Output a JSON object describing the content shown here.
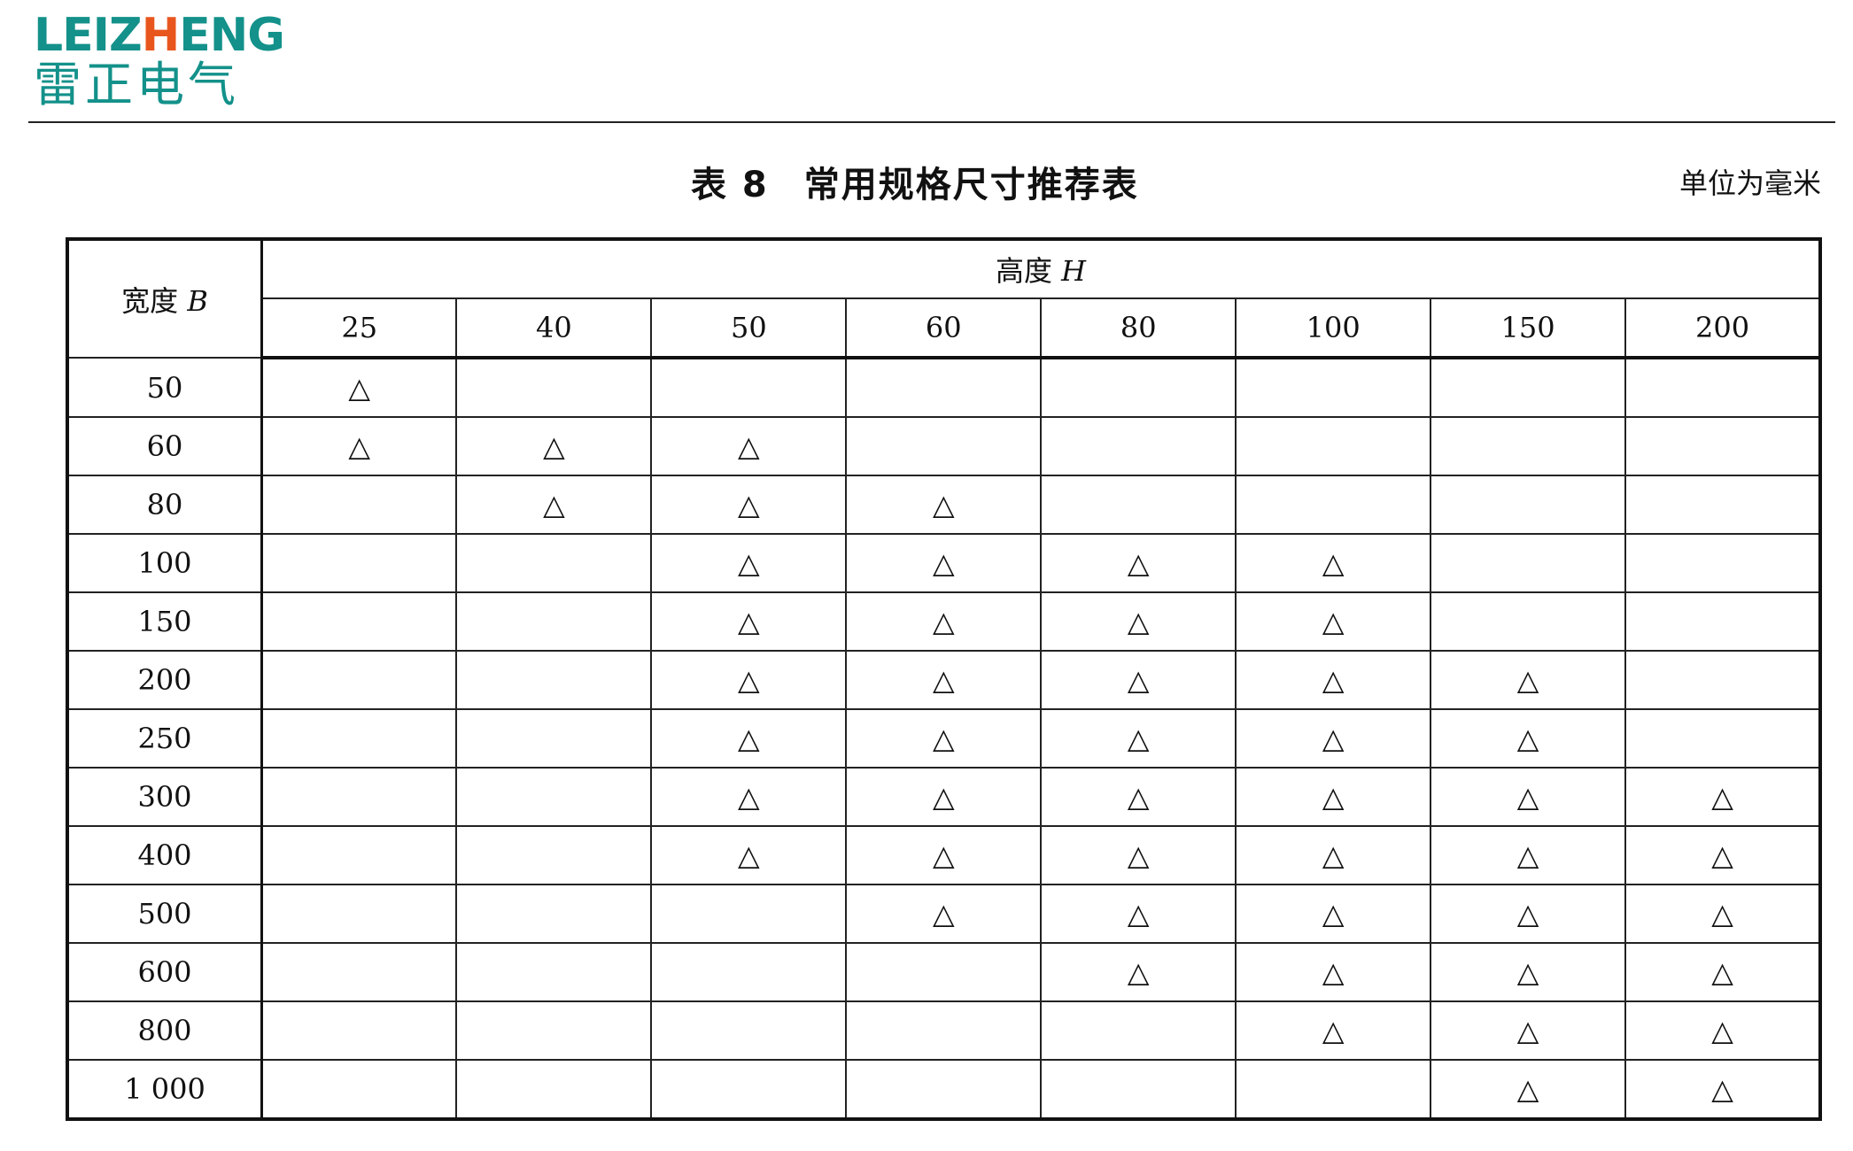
{
  "logo": {
    "en_prefix": "LEIZ",
    "en_highlight": "H",
    "en_suffix": "ENG",
    "cn": "雷正电气",
    "colors": {
      "teal": "#13918a",
      "orange": "#e8561e"
    }
  },
  "title": {
    "number": "表 8",
    "text": "常用规格尺寸推荐表"
  },
  "unit": "单位为毫米",
  "table": {
    "corner_label": "宽度",
    "corner_var": "B",
    "group_label": "高度",
    "group_var": "H",
    "columns": [
      "25",
      "40",
      "50",
      "60",
      "80",
      "100",
      "150",
      "200"
    ],
    "mark": "△",
    "rows": [
      {
        "b": "50",
        "h": [
          "25"
        ]
      },
      {
        "b": "60",
        "h": [
          "25",
          "40",
          "50"
        ]
      },
      {
        "b": "80",
        "h": [
          "40",
          "50",
          "60"
        ]
      },
      {
        "b": "100",
        "h": [
          "50",
          "60",
          "80",
          "100"
        ]
      },
      {
        "b": "150",
        "h": [
          "50",
          "60",
          "80",
          "100"
        ]
      },
      {
        "b": "200",
        "h": [
          "50",
          "60",
          "80",
          "100",
          "150"
        ]
      },
      {
        "b": "250",
        "h": [
          "50",
          "60",
          "80",
          "100",
          "150"
        ]
      },
      {
        "b": "300",
        "h": [
          "50",
          "60",
          "80",
          "100",
          "150",
          "200"
        ]
      },
      {
        "b": "400",
        "h": [
          "50",
          "60",
          "80",
          "100",
          "150",
          "200"
        ]
      },
      {
        "b": "500",
        "h": [
          "60",
          "80",
          "100",
          "150",
          "200"
        ]
      },
      {
        "b": "600",
        "h": [
          "80",
          "100",
          "150",
          "200"
        ]
      },
      {
        "b": "800",
        "h": [
          "100",
          "150",
          "200"
        ]
      },
      {
        "b": "1 000",
        "h": [
          "150",
          "200"
        ]
      }
    ]
  }
}
